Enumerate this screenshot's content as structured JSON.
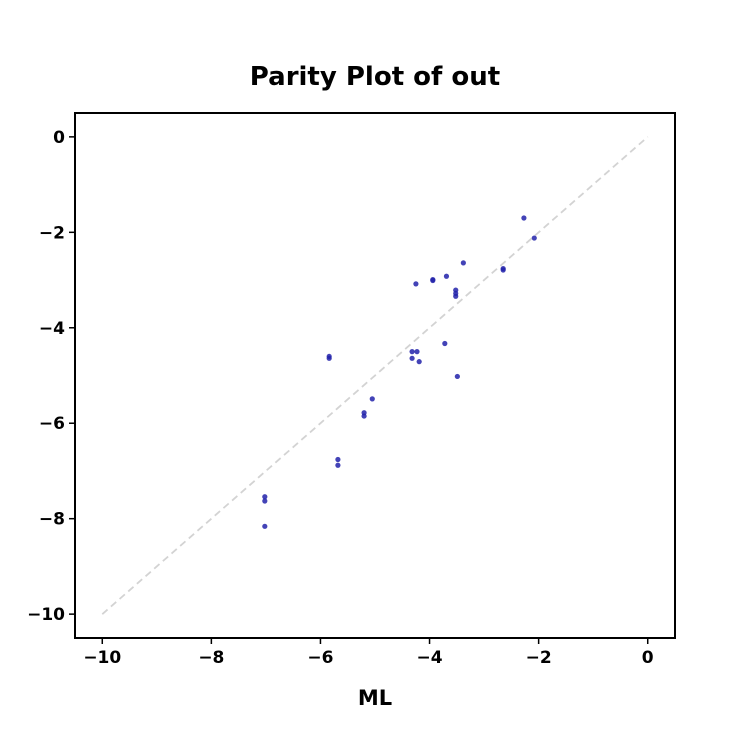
{
  "chart_data": {
    "type": "scatter",
    "title": "Parity Plot of out",
    "xlabel": "ML",
    "ylabel": "",
    "xlim": [
      -10.5,
      0.5
    ],
    "ylim": [
      -10.5,
      0.5
    ],
    "xticks": [
      -10,
      -8,
      -6,
      -4,
      -2,
      0
    ],
    "yticks": [
      0,
      -2,
      -4,
      -6,
      -8,
      -10
    ],
    "xtick_labels": [
      "−10",
      "−8",
      "−6",
      "−4",
      "−2",
      "0"
    ],
    "ytick_labels": [
      "0",
      "−2",
      "−4",
      "−6",
      "−8",
      "−10"
    ],
    "parity_line": {
      "x": [
        -10,
        0
      ],
      "y": [
        -10,
        0
      ],
      "color": "#d3d3d3",
      "style": "dashed"
    },
    "point_color": "#2222aa",
    "grid": false,
    "series": [
      {
        "points": [
          [
            -2.27,
            -1.7
          ],
          [
            -2.08,
            -2.12
          ],
          [
            -3.38,
            -2.64
          ],
          [
            -2.65,
            -2.76
          ],
          [
            -2.65,
            -2.79
          ],
          [
            -3.69,
            -2.92
          ],
          [
            -3.94,
            -2.99
          ],
          [
            -3.94,
            -3.01
          ],
          [
            -4.25,
            -3.08
          ],
          [
            -3.52,
            -3.21
          ],
          [
            -3.52,
            -3.28
          ],
          [
            -3.52,
            -3.34
          ],
          [
            -3.72,
            -4.33
          ],
          [
            -4.32,
            -4.5
          ],
          [
            -4.23,
            -4.5
          ],
          [
            -4.32,
            -4.64
          ],
          [
            -4.19,
            -4.71
          ],
          [
            -5.84,
            -4.6
          ],
          [
            -5.84,
            -4.64
          ],
          [
            -3.49,
            -5.02
          ],
          [
            -5.05,
            -5.49
          ],
          [
            -5.2,
            -5.78
          ],
          [
            -5.2,
            -5.85
          ],
          [
            -5.68,
            -6.76
          ],
          [
            -5.68,
            -6.88
          ],
          [
            -7.02,
            -7.54
          ],
          [
            -7.02,
            -7.63
          ],
          [
            -7.02,
            -8.16
          ]
        ]
      }
    ]
  }
}
